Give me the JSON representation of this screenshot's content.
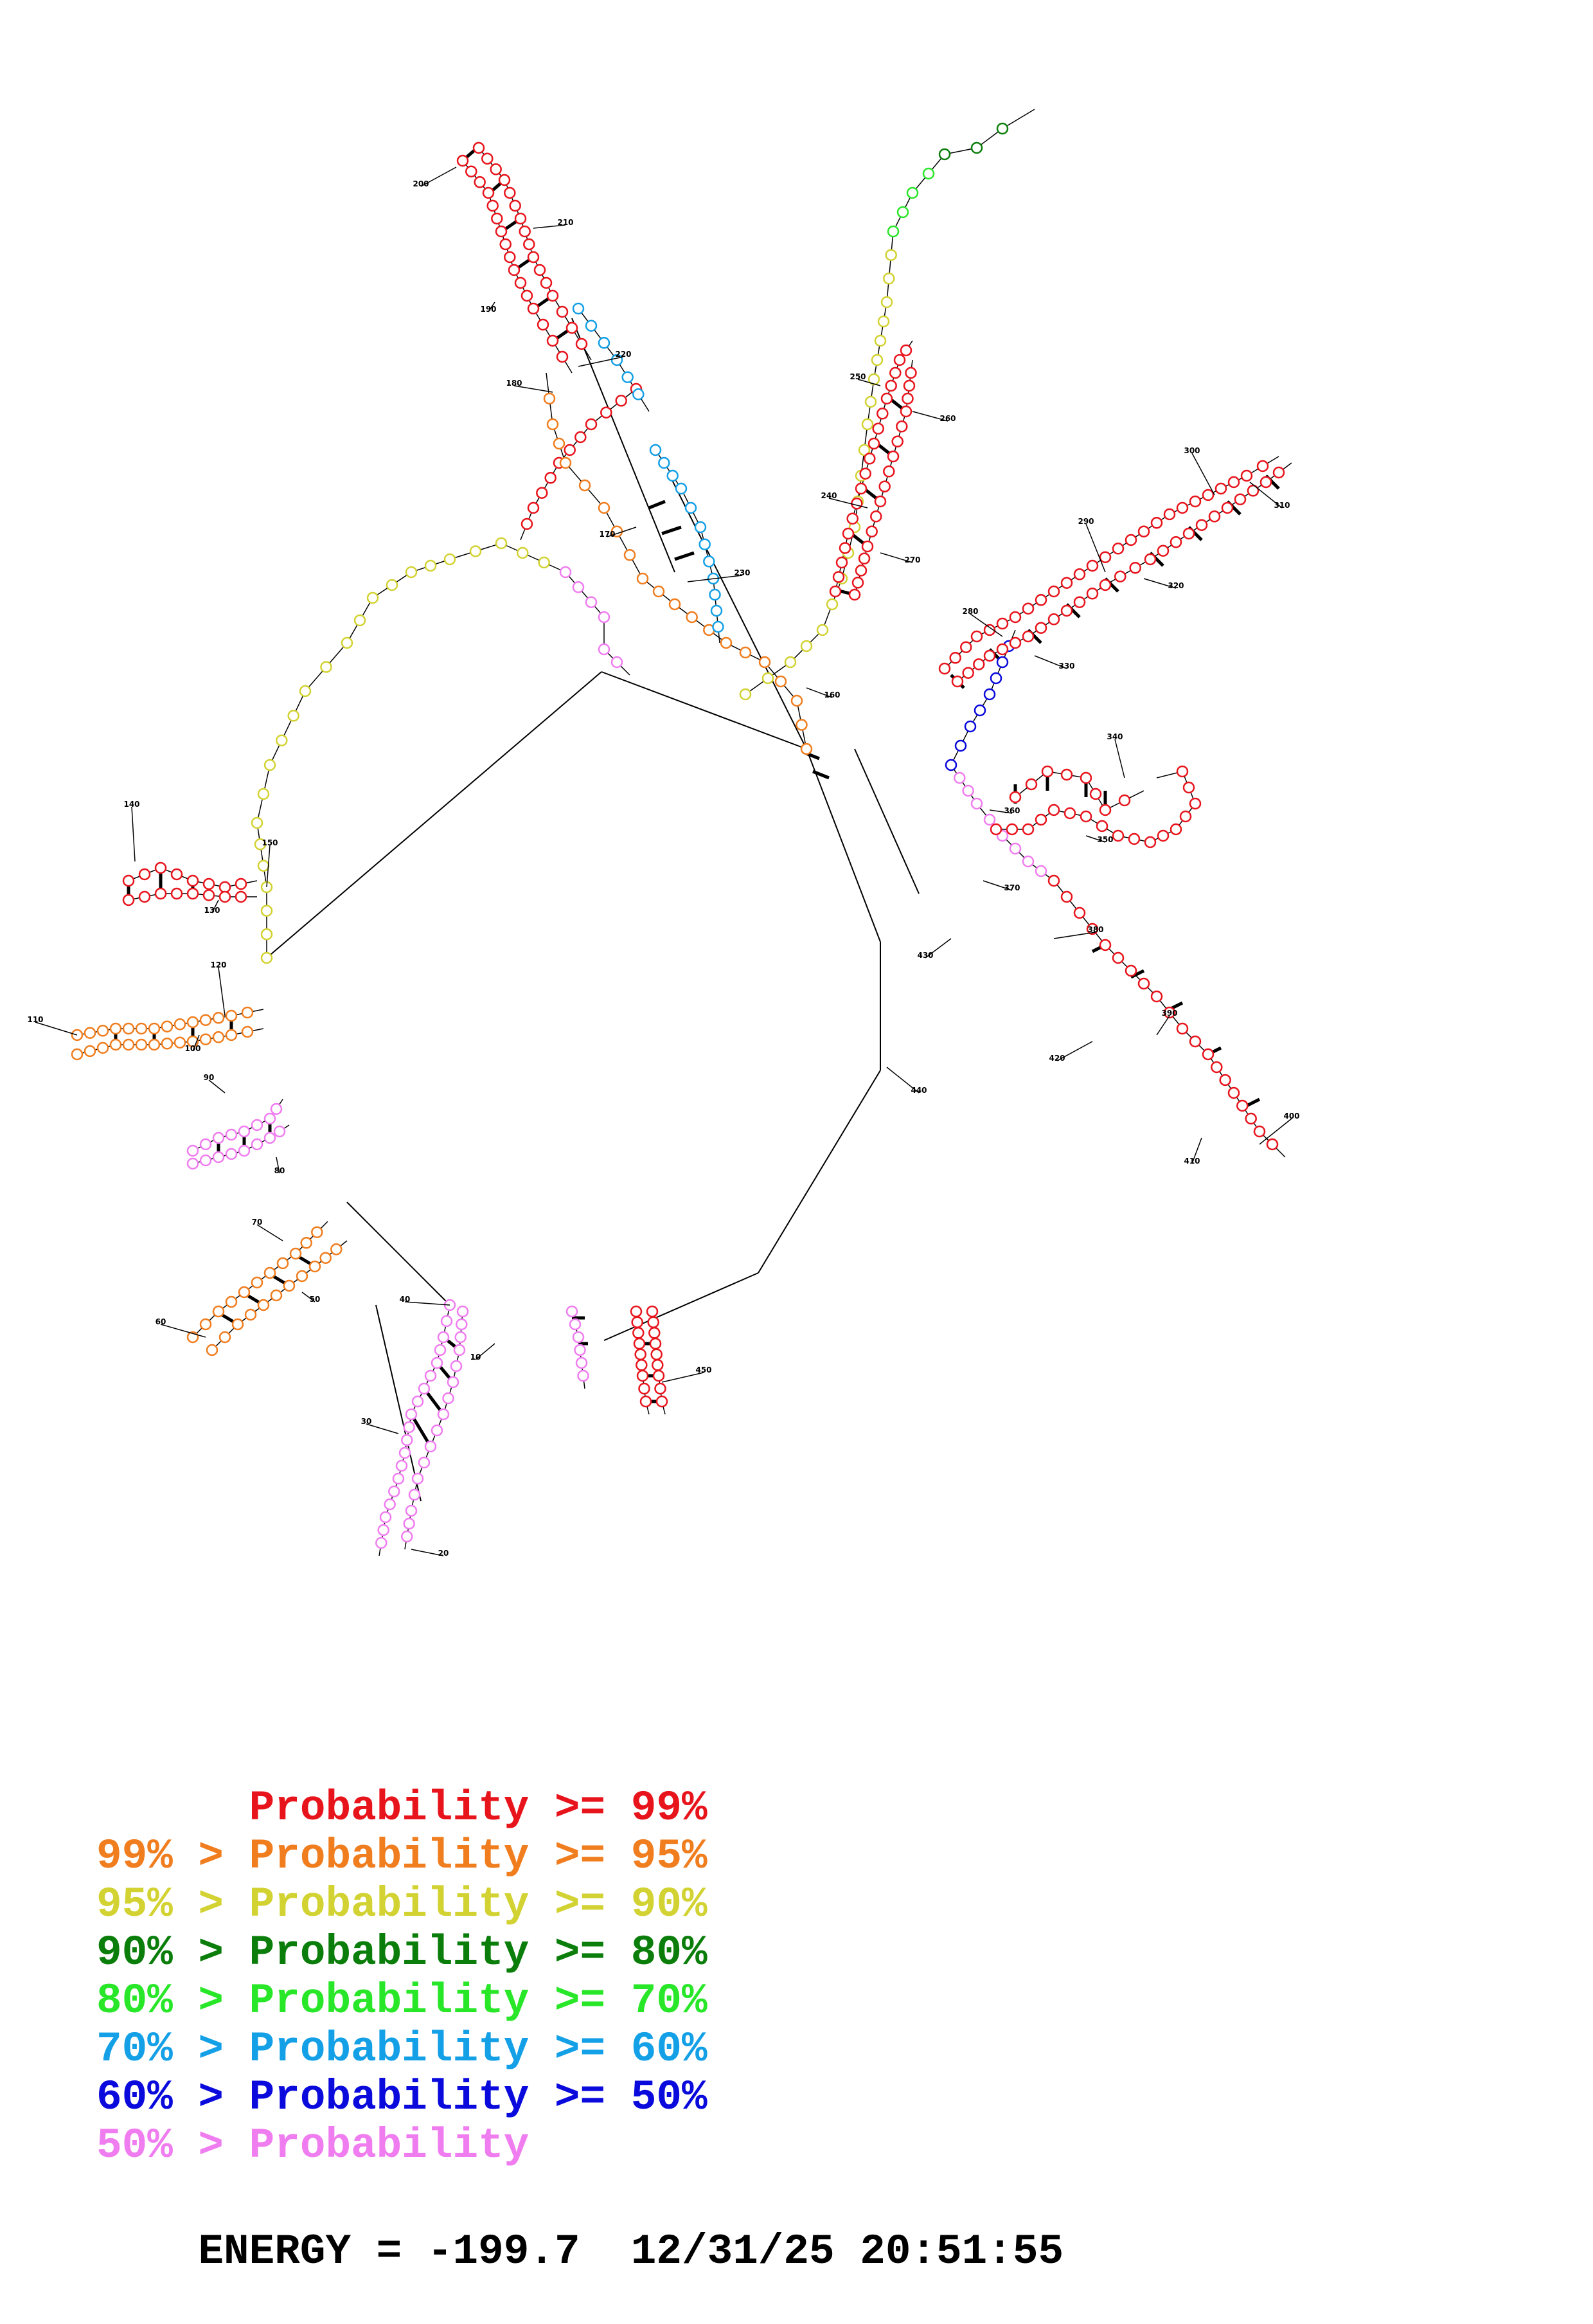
{
  "diagram": {
    "position_labels": [
      "10",
      "20",
      "30",
      "40",
      "50",
      "60",
      "70",
      "80",
      "90",
      "100",
      "110",
      "120",
      "130",
      "140",
      "150",
      "160",
      "170",
      "180",
      "190",
      "200",
      "210",
      "220",
      "230",
      "240",
      "250",
      "260",
      "270",
      "280",
      "290",
      "300",
      "310",
      "320",
      "330",
      "340",
      "350",
      "360",
      "370",
      "380",
      "390",
      "400",
      "410",
      "420",
      "430",
      "440",
      "450"
    ]
  },
  "legend": {
    "items": [
      {
        "text": "      Probability >= 99%",
        "color": "#e8141c"
      },
      {
        "text": "99% > Probability >= 95%",
        "color": "#f07d1e"
      },
      {
        "text": "95% > Probability >= 90%",
        "color": "#d2d232"
      },
      {
        "text": "90% > Probability >= 80%",
        "color": "#0a7d0a"
      },
      {
        "text": "80% > Probability >= 70%",
        "color": "#28e628"
      },
      {
        "text": "70% > Probability >= 60%",
        "color": "#14a0e6"
      },
      {
        "text": "60% > Probability >= 50%",
        "color": "#0a0adc"
      },
      {
        "text": "50% > Probability",
        "color": "#f07df0"
      }
    ],
    "energy_label": "ENERGY = ",
    "energy_value": "-199.7",
    "timestamp": "12/31/25 20:51:55"
  },
  "colors": {
    "p99": "#e8141c",
    "p95": "#f07d1e",
    "p90": "#d2d232",
    "p80": "#0a7d0a",
    "p70": "#28e628",
    "p60": "#14a0e6",
    "p50": "#0a0adc",
    "plow": "#f07df0",
    "ink": "#000000"
  }
}
